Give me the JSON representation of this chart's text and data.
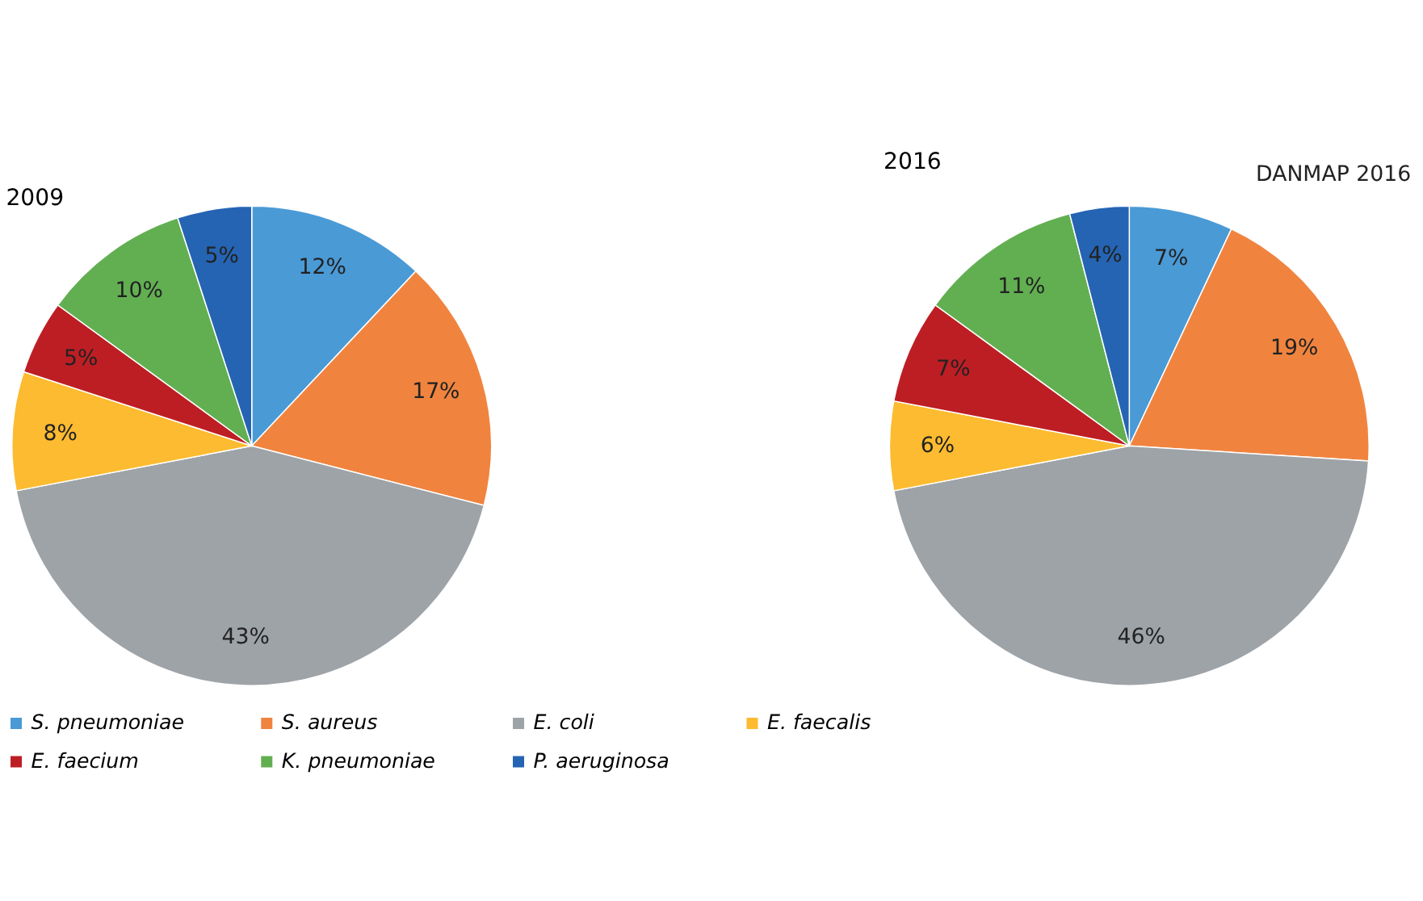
{
  "chart_data": [
    {
      "type": "pie",
      "title": "2009",
      "categories": [
        "S. pneumoniae",
        "S. aureus",
        "E. coli",
        "E. faecalis",
        "E. faecium",
        "K. pneumoniae",
        "P. aeruginosa"
      ],
      "values": [
        12,
        17,
        43,
        8,
        5,
        10,
        5
      ],
      "value_labels": [
        "12%",
        "17%",
        "43%",
        "8%",
        "5%",
        "10%",
        "5%"
      ],
      "colors": [
        "#4a9ad6",
        "#f0843f",
        "#9ea3a8",
        "#fcbb30",
        "#bd1e24",
        "#62af52",
        "#2564b3"
      ],
      "legend": "bottom"
    },
    {
      "type": "pie",
      "title": "2016",
      "categories": [
        null,
        null,
        null,
        null,
        null,
        null,
        null
      ],
      "values": [
        7,
        19,
        46,
        6,
        7,
        11,
        4
      ],
      "value_labels": [
        "7%",
        "19%",
        "46%",
        "6%",
        "7%",
        "11%",
        "4%"
      ],
      "colors": [
        "#4a9ad6",
        "#f0843f",
        "#9ea3a8",
        "#fcbb30",
        "#bd1e24",
        "#62af52",
        "#2564b3"
      ],
      "annotations": [
        "DANMAP 2016"
      ]
    }
  ]
}
